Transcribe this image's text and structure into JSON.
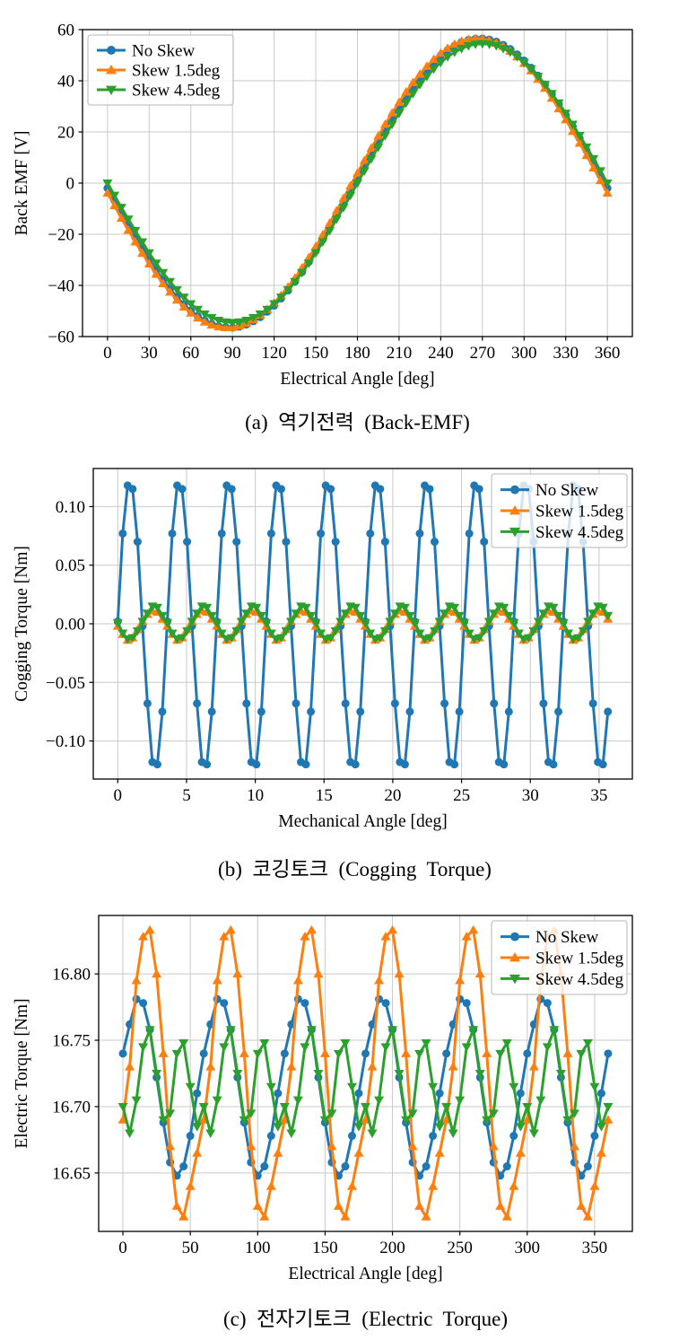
{
  "figure": {
    "background": "#ffffff",
    "text_color": "#000000",
    "grid_color": "#c9c9c9"
  },
  "chart_data": [
    {
      "type": "line",
      "caption": "(a)  역기전력  (Back-EMF)",
      "xlabel": "Electrical Angle [deg]",
      "ylabel": "Back EMF [V]",
      "xlim": [
        -18,
        378
      ],
      "ylim": [
        -60,
        60
      ],
      "xticks": [
        0,
        30,
        60,
        90,
        120,
        150,
        180,
        210,
        240,
        270,
        300,
        330,
        360
      ],
      "xtick_labels": [
        "0",
        "30",
        "60",
        "90",
        "120",
        "150",
        "180",
        "210",
        "240",
        "270",
        "300",
        "330",
        "360"
      ],
      "yticks": [
        -60,
        -40,
        -20,
        0,
        20,
        40,
        60
      ],
      "ytick_labels": [
        "−60",
        "−40",
        "−20",
        "0",
        "20",
        "40",
        "60"
      ],
      "grid": true,
      "legend_position": "upper-left",
      "x_start": 0,
      "x_step": 5,
      "series": [
        {
          "name": "No Skew",
          "marker": "circle",
          "color": "#1f77b4",
          "values": [
            -2.0,
            -6.9,
            -11.7,
            -16.5,
            -21.2,
            -25.7,
            -29.9,
            -34.0,
            -37.8,
            -41.3,
            -44.5,
            -47.4,
            -49.9,
            -52.0,
            -53.7,
            -55.1,
            -56.0,
            -56.4,
            -56.5,
            -56.1,
            -55.3,
            -54.0,
            -52.4,
            -50.3,
            -47.9,
            -45.1,
            -42.0,
            -38.5,
            -34.8,
            -30.8,
            -26.5,
            -22.1,
            -17.5,
            -12.7,
            -7.9,
            -3.0,
            2.0,
            6.9,
            11.7,
            16.5,
            21.2,
            25.7,
            29.9,
            34.0,
            37.8,
            41.3,
            44.5,
            47.4,
            49.9,
            52.0,
            53.7,
            55.1,
            56.0,
            56.4,
            56.5,
            56.1,
            55.3,
            54.0,
            52.4,
            50.3,
            47.9,
            45.1,
            42.0,
            38.5,
            34.8,
            30.8,
            26.5,
            22.1,
            17.5,
            12.7,
            7.9,
            3.0,
            -2.0
          ]
        },
        {
          "name": "Skew 1.5deg",
          "marker": "triangle-up",
          "color": "#ff7f0e",
          "values": [
            -3.9,
            -8.8,
            -13.7,
            -18.4,
            -23.0,
            -27.4,
            -31.6,
            -35.6,
            -39.3,
            -42.6,
            -45.7,
            -48.4,
            -50.8,
            -52.7,
            -54.3,
            -55.5,
            -56.2,
            -56.5,
            -56.4,
            -55.8,
            -54.8,
            -53.4,
            -51.6,
            -49.4,
            -46.8,
            -43.9,
            -40.6,
            -37.1,
            -33.2,
            -29.1,
            -24.8,
            -20.2,
            -15.6,
            -10.8,
            -5.9,
            -1.0,
            3.9,
            8.8,
            13.7,
            18.4,
            23.0,
            27.4,
            31.6,
            35.6,
            39.3,
            42.6,
            45.7,
            48.4,
            50.8,
            52.7,
            54.3,
            55.5,
            56.2,
            56.5,
            56.4,
            55.8,
            54.8,
            53.4,
            51.6,
            49.4,
            46.8,
            43.9,
            40.6,
            37.1,
            33.2,
            29.1,
            24.8,
            20.2,
            15.6,
            10.8,
            5.9,
            1.0,
            -3.9
          ]
        },
        {
          "name": "Skew 4.5deg",
          "marker": "triangle-down",
          "color": "#2ca02c",
          "values": [
            0.0,
            -4.8,
            -9.5,
            -14.1,
            -18.6,
            -23.0,
            -27.3,
            -31.3,
            -35.0,
            -38.5,
            -41.7,
            -44.6,
            -47.2,
            -49.4,
            -51.2,
            -52.6,
            -53.7,
            -54.3,
            -54.5,
            -54.3,
            -53.7,
            -52.6,
            -51.2,
            -49.4,
            -47.2,
            -44.6,
            -41.7,
            -38.5,
            -35.0,
            -31.3,
            -27.3,
            -23.0,
            -18.6,
            -14.1,
            -9.5,
            -4.8,
            0.0,
            4.8,
            9.5,
            14.1,
            18.6,
            23.0,
            27.3,
            31.3,
            35.0,
            38.5,
            41.7,
            44.6,
            47.2,
            49.4,
            51.2,
            52.6,
            53.7,
            54.3,
            54.5,
            54.3,
            53.7,
            52.6,
            51.2,
            49.4,
            47.2,
            44.6,
            41.7,
            38.5,
            35.0,
            31.3,
            27.3,
            23.0,
            18.6,
            14.1,
            9.5,
            4.8,
            0.0
          ]
        }
      ]
    },
    {
      "type": "line",
      "caption": "(b)  코깅토크  (Cogging  Torque)",
      "xlabel": "Mechanical Angle [deg]",
      "ylabel": "Cogging Torque [Nm]",
      "xlim": [
        -1.78,
        37.42
      ],
      "ylim": [
        -0.1325,
        0.1325
      ],
      "xticks": [
        0,
        5,
        10,
        15,
        20,
        25,
        30,
        35
      ],
      "xtick_labels": [
        "0",
        "5",
        "10",
        "15",
        "20",
        "25",
        "30",
        "35"
      ],
      "yticks": [
        -0.1,
        -0.05,
        0,
        0.05,
        0.1
      ],
      "ytick_labels": [
        "−0.10",
        "−0.05",
        "0.00",
        "0.05",
        "0.10"
      ],
      "grid": true,
      "legend_position": "upper-right",
      "x_start": 0,
      "x_step": 0.36,
      "series": [
        {
          "name": "No Skew",
          "marker": "circle",
          "color": "#1f77b4",
          "values": [
            0.002,
            0.077,
            0.118,
            0.115,
            0.07,
            -0.002,
            -0.068,
            -0.118,
            -0.12,
            -0.075,
            0.002,
            0.077,
            0.118,
            0.115,
            0.07,
            -0.002,
            -0.068,
            -0.118,
            -0.12,
            -0.075,
            0.002,
            0.077,
            0.118,
            0.115,
            0.07,
            -0.002,
            -0.068,
            -0.118,
            -0.12,
            -0.075,
            0.002,
            0.077,
            0.118,
            0.115,
            0.07,
            -0.002,
            -0.068,
            -0.118,
            -0.12,
            -0.075,
            0.002,
            0.077,
            0.118,
            0.115,
            0.07,
            -0.002,
            -0.068,
            -0.118,
            -0.12,
            -0.075,
            0.002,
            0.077,
            0.118,
            0.115,
            0.07,
            -0.002,
            -0.068,
            -0.118,
            -0.12,
            -0.075,
            0.002,
            0.077,
            0.118,
            0.115,
            0.07,
            -0.002,
            -0.068,
            -0.118,
            -0.12,
            -0.075,
            0.002,
            0.077,
            0.118,
            0.115,
            0.07,
            -0.002,
            -0.068,
            -0.118,
            -0.12,
            -0.075,
            0.002,
            0.077,
            0.118,
            0.115,
            0.07,
            -0.002,
            -0.068,
            -0.118,
            -0.12,
            -0.075,
            0.002,
            0.077,
            0.118,
            0.115,
            0.07,
            -0.002,
            -0.068,
            -0.118,
            -0.12,
            -0.075
          ]
        },
        {
          "name": "Skew 1.5deg",
          "marker": "triangle-up",
          "color": "#ff7f0e",
          "values": [
            -0.002,
            -0.009,
            -0.014,
            -0.012,
            -0.005,
            0.002,
            0.008,
            0.011,
            0.01,
            0.004,
            -0.002,
            -0.009,
            -0.014,
            -0.012,
            -0.005,
            0.002,
            0.008,
            0.011,
            0.01,
            0.004,
            -0.002,
            -0.009,
            -0.014,
            -0.012,
            -0.005,
            0.002,
            0.008,
            0.011,
            0.01,
            0.004,
            -0.002,
            -0.009,
            -0.014,
            -0.012,
            -0.005,
            0.002,
            0.008,
            0.011,
            0.01,
            0.004,
            -0.002,
            -0.009,
            -0.014,
            -0.012,
            -0.005,
            0.002,
            0.008,
            0.011,
            0.01,
            0.004,
            -0.002,
            -0.009,
            -0.014,
            -0.012,
            -0.005,
            0.002,
            0.008,
            0.011,
            0.01,
            0.004,
            -0.002,
            -0.009,
            -0.014,
            -0.012,
            -0.005,
            0.002,
            0.008,
            0.011,
            0.01,
            0.004,
            -0.002,
            -0.009,
            -0.014,
            -0.012,
            -0.005,
            0.002,
            0.008,
            0.011,
            0.01,
            0.004,
            -0.002,
            -0.009,
            -0.014,
            -0.012,
            -0.005,
            0.002,
            0.008,
            0.011,
            0.01,
            0.004,
            -0.002,
            -0.009,
            -0.014,
            -0.012,
            -0.005,
            0.002,
            0.008,
            0.011,
            0.01,
            0.004
          ]
        },
        {
          "name": "Skew 4.5deg",
          "marker": "triangle-down",
          "color": "#2ca02c",
          "values": [
            0.001,
            -0.008,
            -0.013,
            -0.012,
            -0.006,
            0.002,
            0.009,
            0.015,
            0.014,
            0.007,
            0.001,
            -0.008,
            -0.013,
            -0.012,
            -0.006,
            0.002,
            0.009,
            0.015,
            0.014,
            0.007,
            0.001,
            -0.008,
            -0.013,
            -0.012,
            -0.006,
            0.002,
            0.009,
            0.015,
            0.014,
            0.007,
            0.001,
            -0.008,
            -0.013,
            -0.012,
            -0.006,
            0.002,
            0.009,
            0.015,
            0.014,
            0.007,
            0.001,
            -0.008,
            -0.013,
            -0.012,
            -0.006,
            0.002,
            0.009,
            0.015,
            0.014,
            0.007,
            0.001,
            -0.008,
            -0.013,
            -0.012,
            -0.006,
            0.002,
            0.009,
            0.015,
            0.014,
            0.007,
            0.001,
            -0.008,
            -0.013,
            -0.012,
            -0.006,
            0.002,
            0.009,
            0.015,
            0.014,
            0.007,
            0.001,
            -0.008,
            -0.013,
            -0.012,
            -0.006,
            0.002,
            0.009,
            0.015,
            0.014,
            0.007,
            0.001,
            -0.008,
            -0.013,
            -0.012,
            -0.006,
            0.002,
            0.009,
            0.015,
            0.014,
            0.007,
            0.001,
            -0.008,
            -0.013,
            -0.012,
            -0.006,
            0.002,
            0.009,
            0.015,
            0.014,
            0.007
          ]
        }
      ]
    },
    {
      "type": "line",
      "caption": "(c)  전자기토크  (Electric  Torque)",
      "xlabel": "Electrical Angle [deg]",
      "ylabel": "Electric Torque [Nm]",
      "xlim": [
        -18,
        378
      ],
      "ylim": [
        16.606,
        16.844
      ],
      "xticks": [
        0,
        50,
        100,
        150,
        200,
        250,
        300,
        350
      ],
      "xtick_labels": [
        "0",
        "50",
        "100",
        "150",
        "200",
        "250",
        "300",
        "350"
      ],
      "yticks": [
        16.65,
        16.7,
        16.75,
        16.8
      ],
      "ytick_labels": [
        "16.65",
        "16.70",
        "16.75",
        "16.80"
      ],
      "grid": true,
      "legend_position": "upper-right",
      "x_start": 0,
      "x_step": 5,
      "series": [
        {
          "name": "No Skew",
          "marker": "circle",
          "color": "#1f77b4",
          "values": [
            16.74,
            16.762,
            16.781,
            16.778,
            16.758,
            16.722,
            16.688,
            16.658,
            16.648,
            16.655,
            16.678,
            16.71,
            16.74,
            16.762,
            16.781,
            16.778,
            16.758,
            16.722,
            16.688,
            16.658,
            16.648,
            16.655,
            16.678,
            16.71,
            16.74,
            16.762,
            16.781,
            16.778,
            16.758,
            16.722,
            16.688,
            16.658,
            16.648,
            16.655,
            16.678,
            16.71,
            16.74,
            16.762,
            16.781,
            16.778,
            16.758,
            16.722,
            16.688,
            16.658,
            16.648,
            16.655,
            16.678,
            16.71,
            16.74,
            16.762,
            16.781,
            16.778,
            16.758,
            16.722,
            16.688,
            16.658,
            16.648,
            16.655,
            16.678,
            16.71,
            16.74,
            16.762,
            16.781,
            16.778,
            16.758,
            16.722,
            16.688,
            16.658,
            16.648,
            16.655,
            16.678,
            16.71,
            16.74
          ]
        },
        {
          "name": "Skew 1.5deg",
          "marker": "triangle-up",
          "color": "#ff7f0e",
          "values": [
            16.69,
            16.73,
            16.795,
            16.828,
            16.833,
            16.8,
            16.74,
            16.67,
            16.625,
            16.617,
            16.64,
            16.665,
            16.69,
            16.73,
            16.795,
            16.828,
            16.833,
            16.8,
            16.74,
            16.67,
            16.625,
            16.617,
            16.64,
            16.665,
            16.69,
            16.73,
            16.795,
            16.828,
            16.833,
            16.8,
            16.74,
            16.67,
            16.625,
            16.617,
            16.64,
            16.665,
            16.69,
            16.73,
            16.795,
            16.828,
            16.833,
            16.8,
            16.74,
            16.67,
            16.625,
            16.617,
            16.64,
            16.665,
            16.69,
            16.73,
            16.795,
            16.828,
            16.833,
            16.8,
            16.74,
            16.67,
            16.625,
            16.617,
            16.64,
            16.665,
            16.69,
            16.73,
            16.795,
            16.828,
            16.833,
            16.8,
            16.74,
            16.67,
            16.625,
            16.617,
            16.64,
            16.665,
            16.69
          ]
        },
        {
          "name": "Skew 4.5deg",
          "marker": "triangle-down",
          "color": "#2ca02c",
          "values": [
            16.7,
            16.68,
            16.705,
            16.745,
            16.758,
            16.725,
            16.69,
            16.695,
            16.74,
            16.748,
            16.715,
            16.685,
            16.7,
            16.68,
            16.705,
            16.745,
            16.758,
            16.725,
            16.69,
            16.695,
            16.74,
            16.748,
            16.715,
            16.685,
            16.7,
            16.68,
            16.705,
            16.745,
            16.758,
            16.725,
            16.69,
            16.695,
            16.74,
            16.748,
            16.715,
            16.685,
            16.7,
            16.68,
            16.705,
            16.745,
            16.758,
            16.725,
            16.69,
            16.695,
            16.74,
            16.748,
            16.715,
            16.685,
            16.7,
            16.68,
            16.705,
            16.745,
            16.758,
            16.725,
            16.69,
            16.695,
            16.74,
            16.748,
            16.715,
            16.685,
            16.7,
            16.68,
            16.705,
            16.745,
            16.758,
            16.725,
            16.69,
            16.695,
            16.74,
            16.748,
            16.715,
            16.685,
            16.7
          ]
        }
      ]
    }
  ]
}
